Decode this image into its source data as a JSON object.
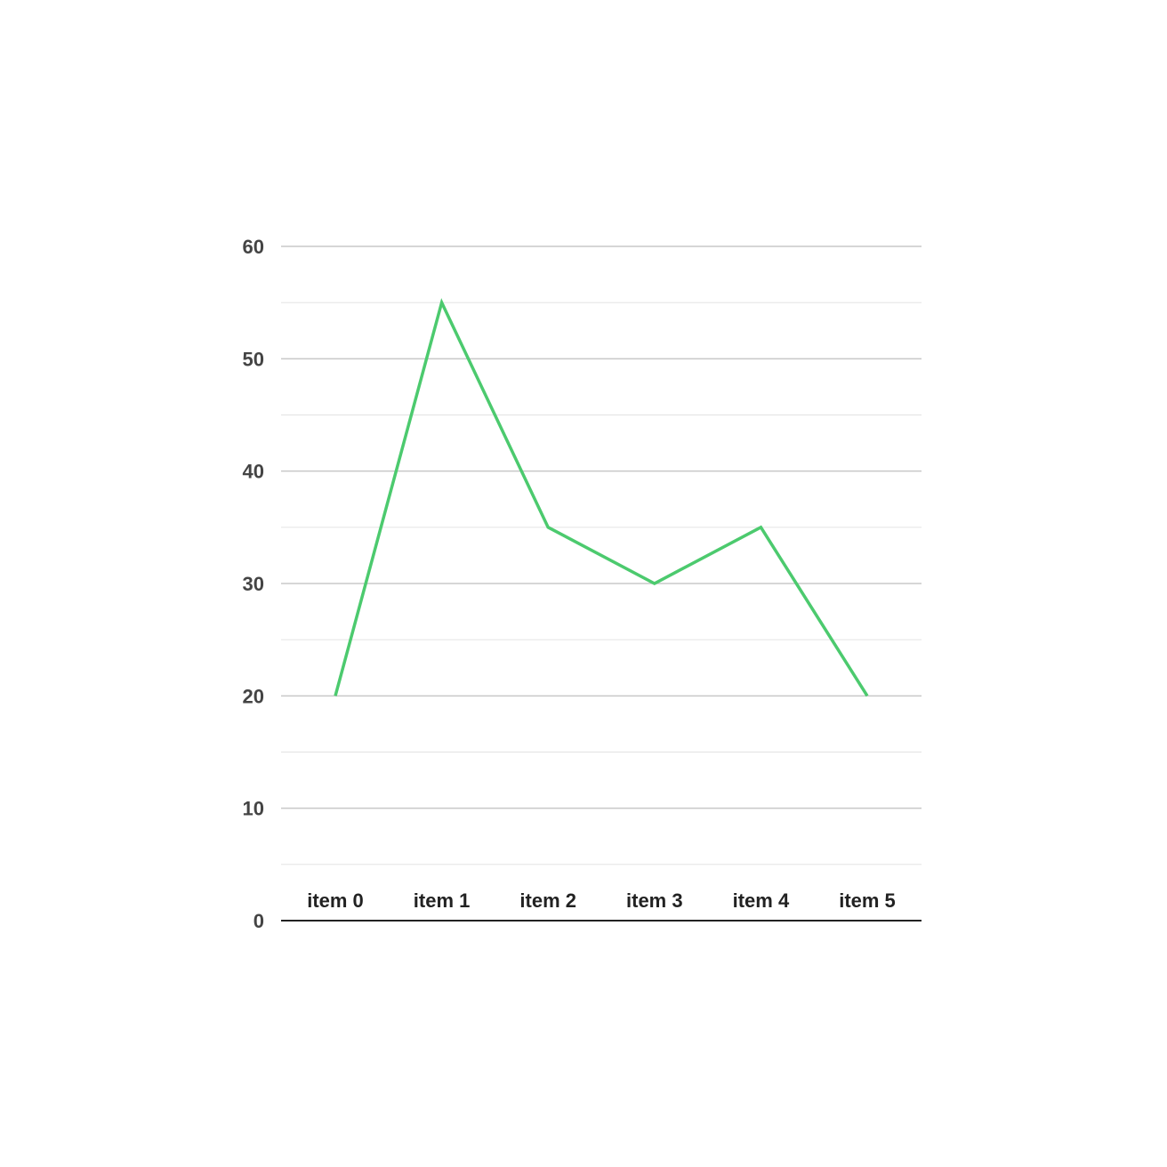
{
  "chart_data": {
    "type": "line",
    "title": "",
    "xlabel": "",
    "ylabel": "",
    "categories": [
      "item 0",
      "item 1",
      "item 2",
      "item 3",
      "item 4",
      "item 5"
    ],
    "series": [
      {
        "values": [
          20,
          55,
          35,
          30,
          35,
          20
        ],
        "color": "#4cca6e"
      }
    ],
    "ylim": [
      0,
      60
    ],
    "yticks": [
      "0",
      "10",
      "20",
      "30",
      "40",
      "50",
      "60"
    ],
    "ytick_values": [
      0,
      10,
      20,
      30,
      40,
      50,
      60
    ],
    "minor_grid_values": [
      5,
      15,
      25,
      35,
      45,
      55
    ],
    "grid": true,
    "legend": "none"
  }
}
